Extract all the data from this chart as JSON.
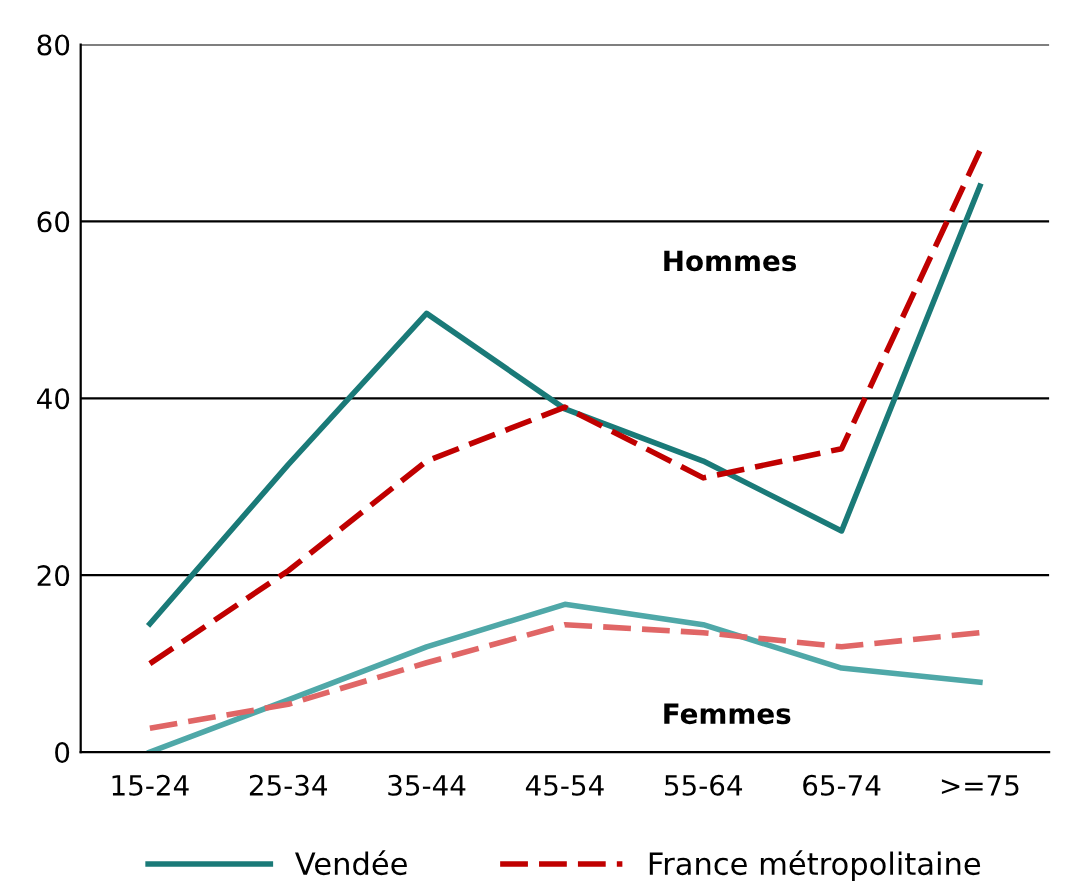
{
  "chart_data": {
    "type": "line",
    "categories": [
      "15-24",
      "25-34",
      "35-44",
      "45-54",
      "55-64",
      "65-74",
      ">=75"
    ],
    "series": [
      {
        "name": "Vendée",
        "color": "#1a7a78",
        "line_style": "solid",
        "values": [
          14.5,
          32.5,
          49.6,
          38.8,
          32.9,
          25,
          64
        ]
      },
      {
        "name": "France métropolitaine",
        "color": "#c00000",
        "line_style": "dashed",
        "values": [
          10,
          20.5,
          32.9,
          39,
          31,
          34.3,
          68
        ]
      },
      {
        "color": "#4fa8a8",
        "line_style": "solid",
        "values": [
          0,
          5.9,
          11.9,
          16.7,
          14.4,
          9.5,
          7.9
        ]
      },
      {
        "color": "#e06666",
        "line_style": "dashed",
        "values": [
          2.7,
          5.4,
          10.1,
          14.4,
          13.5,
          11.9,
          13.5
        ]
      }
    ],
    "ylim": [
      0,
      80
    ],
    "yticks": [
      0,
      20,
      40,
      60,
      80
    ],
    "grid": "y",
    "legend": "bottom",
    "marker": "none",
    "annotations": [
      "Hommes",
      "Femmes"
    ]
  }
}
